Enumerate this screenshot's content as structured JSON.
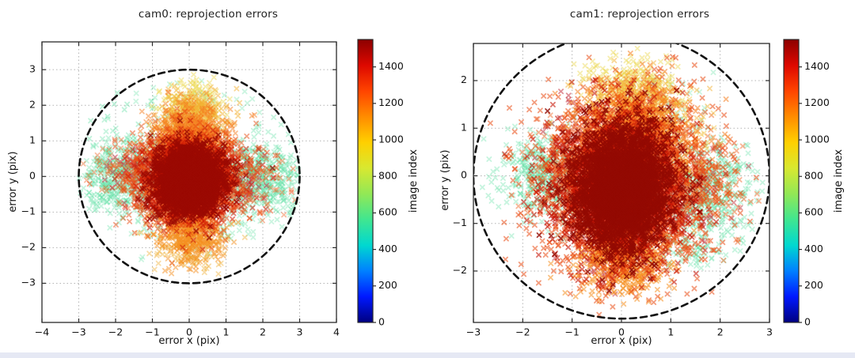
{
  "page": {
    "background": "#ffffff",
    "footer_strip_color": "#e5e8f4"
  },
  "chart_data": [
    {
      "id": "cam0",
      "type": "scatter",
      "title": "cam0: reprojection errors",
      "xlabel": "error x (pix)",
      "ylabel": "error y (pix)",
      "xlim": [
        -4,
        4
      ],
      "ylim": [
        -4.1,
        3.78
      ],
      "xticks": [
        -4,
        -3,
        -2,
        -1,
        0,
        1,
        2,
        3,
        4
      ],
      "yticks": [
        -3,
        -2,
        -1,
        0,
        1,
        2,
        3
      ],
      "grid": true,
      "marker": "x",
      "threshold_circle": {
        "cx": 0,
        "cy": 0,
        "r": 3,
        "style": "dashed",
        "color": "#111111"
      },
      "colorbar": {
        "label": "image index",
        "vmin": 0,
        "vmax": 1550,
        "ticks": [
          0,
          200,
          400,
          600,
          800,
          1000,
          1200,
          1400
        ],
        "colors": [
          "#000080",
          "#0018ff",
          "#0080ff",
          "#00d8d0",
          "#40e690",
          "#92e856",
          "#d8e830",
          "#ffd000",
          "#ff8c00",
          "#ff4400",
          "#dd0800",
          "#8c0000"
        ]
      },
      "clusters": [
        {
          "name": "green-left-wing",
          "color": "#5fdfa2",
          "alpha": 0.35,
          "n": 520,
          "cx": -1.75,
          "cy": 0.05,
          "sx": 0.62,
          "sy": 0.55,
          "seed": 11,
          "clip_r": 3.0
        },
        {
          "name": "green-right-wing",
          "color": "#5fdfa2",
          "alpha": 0.35,
          "n": 520,
          "cx": 1.8,
          "cy": -0.05,
          "sx": 0.6,
          "sy": 0.5,
          "seed": 12,
          "clip_r": 3.0
        },
        {
          "name": "green-top-sparse",
          "color": "#5fdfa2",
          "alpha": 0.32,
          "n": 70,
          "cx": -0.4,
          "cy": 1.75,
          "sx": 0.9,
          "sy": 0.45,
          "seed": 13,
          "clip_r": 2.9
        },
        {
          "name": "green-bottom-sparse",
          "color": "#5fdfa2",
          "alpha": 0.32,
          "n": 90,
          "cx": 0.3,
          "cy": -1.35,
          "sx": 1.1,
          "sy": 0.5,
          "seed": 14,
          "clip_r": 2.9
        },
        {
          "name": "green-outliers",
          "color": "#5fdfa2",
          "alpha": 0.4,
          "n": 10,
          "cx": -2.3,
          "cy": 1.8,
          "sx": 0.45,
          "sy": 0.5,
          "seed": 15,
          "clip_r": 3.1
        },
        {
          "name": "orange-left-mix",
          "color": "#ee5a17",
          "alpha": 0.4,
          "n": 90,
          "cx": -1.8,
          "cy": 0.1,
          "sx": 0.5,
          "sy": 0.45,
          "seed": 16,
          "clip_r": 3.0
        },
        {
          "name": "orange-right-mix",
          "color": "#ee5a17",
          "alpha": 0.4,
          "n": 80,
          "cx": 1.85,
          "cy": -0.15,
          "sx": 0.45,
          "sy": 0.4,
          "seed": 17,
          "clip_r": 3.0
        },
        {
          "name": "crimson-left",
          "color": "#d0293f",
          "alpha": 0.5,
          "n": 55,
          "cx": -1.5,
          "cy": 0.15,
          "sx": 0.42,
          "sy": 0.42,
          "seed": 18
        },
        {
          "name": "crimson-right",
          "color": "#d0293f",
          "alpha": 0.5,
          "n": 40,
          "cx": 1.5,
          "cy": -0.1,
          "sx": 0.38,
          "sy": 0.4,
          "seed": 19
        },
        {
          "name": "yellow-top",
          "color": "#ecd84e",
          "alpha": 0.45,
          "n": 160,
          "cx": 0.1,
          "cy": 2.05,
          "sx": 0.4,
          "sy": 0.33,
          "seed": 20,
          "clip_r": 2.9
        },
        {
          "name": "gold-top",
          "color": "#f3b233",
          "alpha": 0.5,
          "n": 380,
          "cx": 0.1,
          "cy": 1.55,
          "sx": 0.48,
          "sy": 0.38,
          "seed": 21
        },
        {
          "name": "gold-bottom",
          "color": "#f0b23c",
          "alpha": 0.45,
          "n": 130,
          "cx": 0.1,
          "cy": -2.0,
          "sx": 0.45,
          "sy": 0.3,
          "seed": 22
        },
        {
          "name": "orange-top-plume",
          "color": "#f57d1f",
          "alpha": 0.5,
          "n": 650,
          "cx": 0.0,
          "cy": 1.05,
          "sx": 0.52,
          "sy": 0.45,
          "seed": 23
        },
        {
          "name": "orange-bottom-plume",
          "color": "#f58f20",
          "alpha": 0.5,
          "n": 500,
          "cx": 0.0,
          "cy": -1.5,
          "sx": 0.42,
          "sy": 0.45,
          "seed": 24
        },
        {
          "name": "orangered-mid",
          "color": "#e94b12",
          "alpha": 0.5,
          "n": 1900,
          "cx": -0.05,
          "cy": -0.05,
          "sx": 0.75,
          "sy": 0.63,
          "seed": 25
        },
        {
          "name": "red-inner",
          "color": "#cd1a06",
          "alpha": 0.55,
          "n": 1600,
          "cx": 0.0,
          "cy": -0.1,
          "sx": 0.56,
          "sy": 0.52,
          "seed": 26
        },
        {
          "name": "darkred-core",
          "color": "#9b0a03",
          "alpha": 0.75,
          "n": 2600,
          "cx": 0.0,
          "cy": -0.1,
          "sx": 0.43,
          "sy": 0.43,
          "seed": 27
        }
      ]
    },
    {
      "id": "cam1",
      "type": "scatter",
      "title": "cam1: reprojection errors",
      "xlabel": "error x (pix)",
      "ylabel": "error y (pix)",
      "xlim": [
        -3,
        3
      ],
      "ylim": [
        -3.08,
        2.78
      ],
      "xticks": [
        -3,
        -2,
        -1,
        0,
        1,
        2,
        3
      ],
      "yticks": [
        -2,
        -1,
        0,
        1,
        2
      ],
      "grid": true,
      "marker": "x",
      "threshold_circle": {
        "cx": 0,
        "cy": 0,
        "r": 3,
        "style": "dashed",
        "color": "#111111"
      },
      "colorbar": {
        "label": "image index",
        "vmin": 0,
        "vmax": 1550,
        "ticks": [
          0,
          200,
          400,
          600,
          800,
          1000,
          1200,
          1400
        ],
        "colors": [
          "#000080",
          "#0018ff",
          "#0080ff",
          "#00d8d0",
          "#40e690",
          "#92e856",
          "#d8e830",
          "#ffd000",
          "#ff8c00",
          "#ff4400",
          "#dd0800",
          "#8c0000"
        ]
      },
      "clusters": [
        {
          "name": "green-left-wing",
          "color": "#5fdfa2",
          "alpha": 0.35,
          "n": 420,
          "cx": -1.5,
          "cy": 0.0,
          "sx": 0.5,
          "sy": 0.45,
          "seed": 31,
          "clip_r": 2.9
        },
        {
          "name": "green-right-wing",
          "color": "#5fdfa2",
          "alpha": 0.35,
          "n": 480,
          "cx": 1.7,
          "cy": -0.35,
          "sx": 0.52,
          "sy": 0.5,
          "seed": 32,
          "clip_r": 2.9
        },
        {
          "name": "green-bottom-right",
          "color": "#5fdfa2",
          "alpha": 0.35,
          "n": 90,
          "cx": 1.25,
          "cy": -1.5,
          "sx": 0.5,
          "sy": 0.28,
          "seed": 33,
          "clip_r": 2.9
        },
        {
          "name": "green-top-right",
          "color": "#5fdfa2",
          "alpha": 0.32,
          "n": 60,
          "cx": 0.95,
          "cy": 1.3,
          "sx": 0.5,
          "sy": 0.4,
          "seed": 34,
          "clip_r": 2.9
        },
        {
          "name": "orange-right-mix",
          "color": "#ee5a17",
          "alpha": 0.45,
          "n": 320,
          "cx": 1.45,
          "cy": -0.25,
          "sx": 0.5,
          "sy": 0.5,
          "seed": 35,
          "clip_r": 3.0
        },
        {
          "name": "orange-left-mix",
          "color": "#ee5a17",
          "alpha": 0.45,
          "n": 160,
          "cx": -1.15,
          "cy": 0.1,
          "sx": 0.38,
          "sy": 0.42,
          "seed": 36
        },
        {
          "name": "crimson-upper-left",
          "color": "#c43340",
          "alpha": 0.55,
          "n": 60,
          "cx": -0.8,
          "cy": 0.8,
          "sx": 0.38,
          "sy": 0.38,
          "seed": 37
        },
        {
          "name": "crimson-right",
          "color": "#c43340",
          "alpha": 0.5,
          "n": 70,
          "cx": 1.4,
          "cy": -0.45,
          "sx": 0.42,
          "sy": 0.5,
          "seed": 38
        },
        {
          "name": "crimson-bottom",
          "color": "#c43340",
          "alpha": 0.5,
          "n": 55,
          "cx": -0.15,
          "cy": -1.8,
          "sx": 0.5,
          "sy": 0.3,
          "seed": 39
        },
        {
          "name": "yellow-top",
          "color": "#ecd84e",
          "alpha": 0.45,
          "n": 200,
          "cx": 0.2,
          "cy": 1.95,
          "sx": 0.48,
          "sy": 0.3,
          "seed": 40,
          "clip_r": 2.7
        },
        {
          "name": "gold-top",
          "color": "#f3b233",
          "alpha": 0.5,
          "n": 400,
          "cx": 0.3,
          "cy": 1.4,
          "sx": 0.52,
          "sy": 0.4,
          "seed": 41
        },
        {
          "name": "gold-right",
          "color": "#f2c23e",
          "alpha": 0.45,
          "n": 160,
          "cx": 0.95,
          "cy": 0.6,
          "sx": 0.38,
          "sy": 0.5,
          "seed": 42
        },
        {
          "name": "orange-top-plume",
          "color": "#f57d1f",
          "alpha": 0.55,
          "n": 750,
          "cx": 0.2,
          "cy": 0.95,
          "sx": 0.58,
          "sy": 0.5,
          "seed": 43
        },
        {
          "name": "orange-bottom-plume",
          "color": "#f58f20",
          "alpha": 0.55,
          "n": 600,
          "cx": 0.0,
          "cy": -1.7,
          "sx": 0.45,
          "sy": 0.42,
          "seed": 44
        },
        {
          "name": "orangered-ring",
          "color": "#e94b12",
          "alpha": 0.55,
          "n": 2300,
          "cx": 0.0,
          "cy": -0.2,
          "sx": 0.82,
          "sy": 0.88,
          "seed": 45
        },
        {
          "name": "red-inner",
          "color": "#c61506",
          "alpha": 0.6,
          "n": 1900,
          "cx": 0.0,
          "cy": -0.25,
          "sx": 0.62,
          "sy": 0.74,
          "seed": 46
        },
        {
          "name": "darkred-core",
          "color": "#940a03",
          "alpha": 0.8,
          "n": 3100,
          "cx": 0.0,
          "cy": -0.25,
          "sx": 0.48,
          "sy": 0.62,
          "seed": 47
        }
      ]
    }
  ]
}
